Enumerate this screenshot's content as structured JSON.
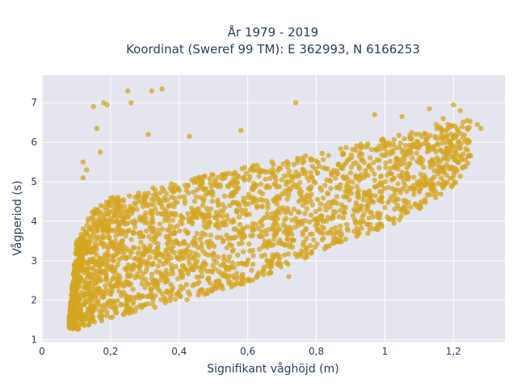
{
  "chart_data": {
    "type": "scatter",
    "title": "År 1979 - 2019",
    "subtitle": "Koordinat (Sweref 99 TM): E 362993, N 6166253",
    "xlabel": "Signifikant våghöjd (m)",
    "ylabel": "Vågperiod (s)",
    "xlim": [
      0,
      1.35
    ],
    "ylim": [
      0.95,
      7.7
    ],
    "x_ticks": [
      0,
      0.2,
      0.4,
      0.6,
      0.8,
      1,
      1.2
    ],
    "x_tick_labels": [
      "0",
      "0,2",
      "0,4",
      "0,6",
      "0,8",
      "1",
      "1,2"
    ],
    "y_ticks": [
      1,
      2,
      3,
      4,
      5,
      6,
      7
    ],
    "y_tick_labels": [
      "1",
      "2",
      "3",
      "4",
      "5",
      "6",
      "7"
    ],
    "grid": true,
    "legend": "none",
    "marker_color": "#d4a520",
    "background_color": "#e5e5ef",
    "point_count_shown": "dense cloud (~tens of thousands of hourly observations)",
    "density_envelope": {
      "x": [
        0.08,
        0.1,
        0.15,
        0.2,
        0.3,
        0.4,
        0.5,
        0.6,
        0.7,
        0.8,
        0.9,
        1.0,
        1.1,
        1.2,
        1.25
      ],
      "y_lower": [
        1.3,
        1.25,
        1.4,
        1.55,
        1.75,
        1.95,
        2.2,
        2.45,
        2.8,
        3.2,
        3.5,
        3.8,
        4.3,
        4.9,
        5.5
      ],
      "y_upper": [
        1.6,
        3.5,
        4.3,
        4.6,
        4.8,
        5.0,
        5.2,
        5.4,
        5.55,
        5.7,
        5.9,
        6.1,
        6.3,
        6.5,
        6.6
      ]
    },
    "outliers": [
      {
        "x": 0.15,
        "y": 6.9
      },
      {
        "x": 0.18,
        "y": 7.0
      },
      {
        "x": 0.19,
        "y": 6.95
      },
      {
        "x": 0.25,
        "y": 7.3
      },
      {
        "x": 0.26,
        "y": 7.0
      },
      {
        "x": 0.32,
        "y": 7.3
      },
      {
        "x": 0.35,
        "y": 7.35
      },
      {
        "x": 0.74,
        "y": 7.0
      },
      {
        "x": 0.16,
        "y": 6.35
      },
      {
        "x": 0.31,
        "y": 6.2
      },
      {
        "x": 0.43,
        "y": 6.15
      },
      {
        "x": 0.58,
        "y": 6.3
      },
      {
        "x": 0.17,
        "y": 5.75
      },
      {
        "x": 0.12,
        "y": 5.5
      },
      {
        "x": 0.13,
        "y": 5.3
      },
      {
        "x": 0.12,
        "y": 5.1
      },
      {
        "x": 0.72,
        "y": 2.6
      },
      {
        "x": 0.32,
        "y": 2.55
      },
      {
        "x": 0.55,
        "y": 2.45
      },
      {
        "x": 0.63,
        "y": 2.65
      },
      {
        "x": 0.97,
        "y": 6.7
      },
      {
        "x": 1.05,
        "y": 6.65
      },
      {
        "x": 1.13,
        "y": 6.85
      },
      {
        "x": 1.2,
        "y": 6.95
      },
      {
        "x": 1.22,
        "y": 6.8
      },
      {
        "x": 1.24,
        "y": 6.55
      },
      {
        "x": 1.27,
        "y": 6.45
      },
      {
        "x": 1.28,
        "y": 6.35
      },
      {
        "x": 1.17,
        "y": 6.6
      },
      {
        "x": 1.15,
        "y": 6.45
      },
      {
        "x": 1.1,
        "y": 6.2
      },
      {
        "x": 1.2,
        "y": 5.9
      },
      {
        "x": 1.18,
        "y": 5.85
      },
      {
        "x": 1.02,
        "y": 5.2
      },
      {
        "x": 1.05,
        "y": 5.15
      },
      {
        "x": 1.08,
        "y": 5.6
      },
      {
        "x": 0.99,
        "y": 6.05
      },
      {
        "x": 0.93,
        "y": 5.95
      },
      {
        "x": 1.0,
        "y": 4.35
      },
      {
        "x": 0.98,
        "y": 4.1
      },
      {
        "x": 0.95,
        "y": 4.35
      },
      {
        "x": 0.85,
        "y": 3.55
      },
      {
        "x": 0.87,
        "y": 3.6
      },
      {
        "x": 0.92,
        "y": 3.65
      }
    ]
  }
}
